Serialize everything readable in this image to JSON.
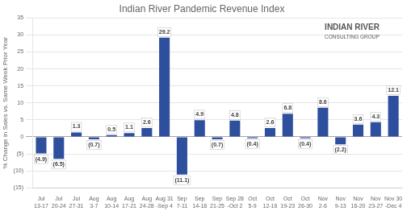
{
  "chart_data": {
    "type": "bar",
    "title": "Indian River Pandemic Revenue Index",
    "ylabel": "% Change in Sales vs. Same Week Prior Year",
    "categories": [
      "Jul\n13-17",
      "Jul\n20-24",
      "Jul\n27-31",
      "Aug\n3-7",
      "Aug\n10-14",
      "Aug\n17-21",
      "Aug\n24-28",
      "Aug 31\n-Sep 4",
      "Sep\n7-11",
      "Sep\n14-18",
      "Sep\n21-25",
      "Sep 28\n-Oct 2",
      "Oct\n5-9",
      "Oct\n12-16",
      "Oct\n19-23",
      "Oct\n26-30",
      "Nov\n2-6",
      "Nov\n9-13",
      "Nov\n16-20",
      "Nov\n23-27",
      "Nov 30\n-Dec 4"
    ],
    "values": [
      -4.9,
      -6.5,
      1.3,
      -0.7,
      0.5,
      1.1,
      2.6,
      29.2,
      -11.1,
      4.9,
      -0.7,
      4.8,
      -0.4,
      2.6,
      6.8,
      -0.4,
      8.6,
      -2.2,
      3.6,
      4.3,
      12.1
    ],
    "value_labels": [
      "(4.9)",
      "(6.5)",
      "1.3",
      "(0.7)",
      "0.5",
      "1.1",
      "2.6",
      "29.2",
      "(11.1)",
      "4.9",
      "(0.7)",
      "4.8",
      "(0.4)",
      "2.6",
      "6.8",
      "(0.4)",
      "8.6",
      "(2.2)",
      "3.6",
      "4.3",
      "12.1"
    ],
    "data_labels": true,
    "color": "#2e4f9e",
    "ylim": [
      -15,
      35
    ],
    "yticks": [
      {
        "value": -15,
        "label": "(15)"
      },
      {
        "value": -10,
        "label": "(10)"
      },
      {
        "value": -5,
        "label": "(5)"
      },
      0,
      5,
      10,
      15,
      20,
      25,
      30,
      35
    ],
    "grid": true,
    "annotations": [
      "INDIAN RIVER",
      "CONSULTING GROUP"
    ]
  }
}
